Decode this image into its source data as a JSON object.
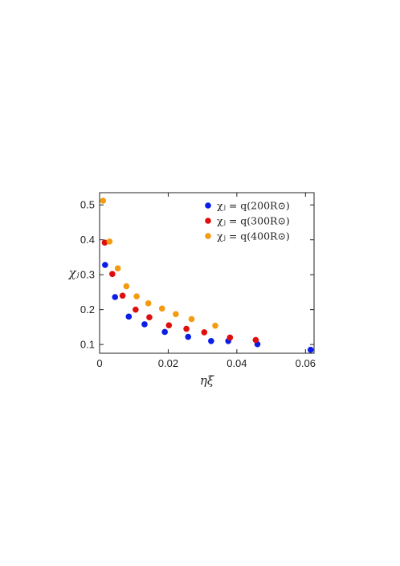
{
  "chart_data": {
    "type": "scatter",
    "xlabel": "ηξ",
    "ylabel": "χⱼ",
    "xlim": [
      0,
      0.0625
    ],
    "ylim": [
      0.075,
      0.535
    ],
    "xticks": [
      "0",
      "0.02",
      "0.04",
      "0.06"
    ],
    "xtick_values": [
      0,
      0.02,
      0.04,
      0.06
    ],
    "yticks": [
      "0.1",
      "0.2",
      "0.3",
      "0.4",
      "0.5"
    ],
    "ytick_values": [
      0.1,
      0.2,
      0.3,
      0.4,
      0.5
    ],
    "grid": false,
    "legend_position": "top-right",
    "series": [
      {
        "name": "χⱼ = q(200R⊙)",
        "color": "#0a1ee8",
        "x": [
          0.0016,
          0.0045,
          0.0085,
          0.0131,
          0.019,
          0.0258,
          0.0325,
          0.0375,
          0.046,
          0.0615
        ],
        "y": [
          0.328,
          0.236,
          0.18,
          0.158,
          0.136,
          0.122,
          0.11,
          0.11,
          0.101,
          0.085
        ]
      },
      {
        "name": "χⱼ = q(300R⊙)",
        "color": "#e00d0d",
        "x": [
          0.0015,
          0.0037,
          0.0067,
          0.0105,
          0.0145,
          0.0202,
          0.0253,
          0.0305,
          0.038,
          0.0455
        ],
        "y": [
          0.392,
          0.302,
          0.24,
          0.2,
          0.178,
          0.155,
          0.145,
          0.135,
          0.12,
          0.113
        ]
      },
      {
        "name": "χⱼ = q(400R⊙)",
        "color": "#f59b10",
        "x": [
          0.001,
          0.0029,
          0.0053,
          0.0078,
          0.0108,
          0.0142,
          0.0182,
          0.0222,
          0.0268,
          0.0337
        ],
        "y": [
          0.512,
          0.395,
          0.318,
          0.267,
          0.238,
          0.218,
          0.203,
          0.187,
          0.173,
          0.154
        ]
      }
    ]
  }
}
